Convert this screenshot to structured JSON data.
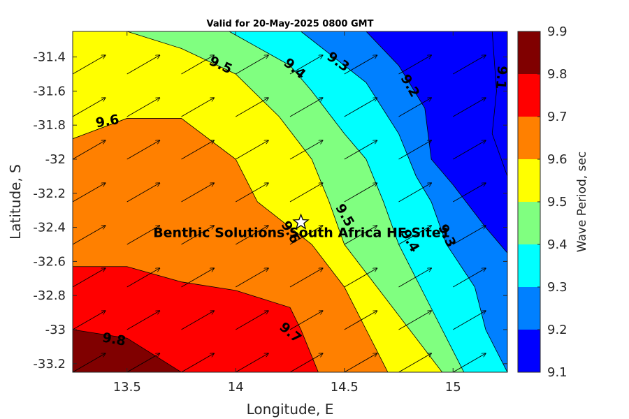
{
  "chart_data": {
    "type": "contour",
    "title": "Valid for 20-May-2025 0800 GMT",
    "xlabel": "Longitude, E",
    "ylabel": "Latitude, S",
    "colorbar_label": "Wave Period, sec",
    "xlim": [
      13.25,
      15.25
    ],
    "ylim": [
      -33.25,
      -31.25
    ],
    "xticks": [
      13.5,
      14,
      14.5,
      15
    ],
    "xtick_labels": [
      "13.5",
      "14",
      "14.5",
      "15"
    ],
    "yticks": [
      -31.4,
      -31.6,
      -31.8,
      -32,
      -32.2,
      -32.4,
      -32.6,
      -32.8,
      -33,
      -33.2
    ],
    "ytick_labels": [
      "-31.4",
      "-31.6",
      "-31.8",
      "-32",
      "-32.2",
      "-32.4",
      "-32.6",
      "-32.8",
      "-33",
      "-33.2"
    ],
    "colorbar": {
      "levels": [
        9.1,
        9.2,
        9.3,
        9.4,
        9.5,
        9.6,
        9.7,
        9.8,
        9.9
      ],
      "tick_labels": [
        "9.1",
        "9.2",
        "9.3",
        "9.4",
        "9.5",
        "9.6",
        "9.7",
        "9.8",
        "9.9"
      ],
      "colors": [
        "#0000ff",
        "#0080ff",
        "#00ffff",
        "#80ff80",
        "#ffff00",
        "#ff8000",
        "#ff0000",
        "#800000"
      ]
    },
    "contour_lines": [
      {
        "level": 9.8,
        "points": [
          [
            13.25,
            -33.0
          ],
          [
            13.5,
            -33.05
          ],
          [
            13.75,
            -33.25
          ]
        ]
      },
      {
        "level": 9.7,
        "points": [
          [
            13.25,
            -32.63
          ],
          [
            13.5,
            -32.63
          ],
          [
            13.75,
            -32.72
          ],
          [
            14.0,
            -32.77
          ],
          [
            14.25,
            -32.87
          ],
          [
            14.3,
            -33.0
          ],
          [
            14.38,
            -33.25
          ]
        ]
      },
      {
        "level": 9.6,
        "points": [
          [
            13.25,
            -31.88
          ],
          [
            13.5,
            -31.76
          ],
          [
            13.75,
            -31.76
          ],
          [
            14.0,
            -32.0
          ],
          [
            14.1,
            -32.25
          ],
          [
            14.35,
            -32.5
          ],
          [
            14.5,
            -32.75
          ],
          [
            14.6,
            -33.0
          ],
          [
            14.7,
            -33.25
          ]
        ]
      },
      {
        "level": 9.5,
        "points": [
          [
            13.5,
            -31.25
          ],
          [
            13.75,
            -31.35
          ],
          [
            14.0,
            -31.5
          ],
          [
            14.2,
            -31.75
          ],
          [
            14.35,
            -32.0
          ],
          [
            14.43,
            -32.25
          ],
          [
            14.5,
            -32.5
          ],
          [
            14.65,
            -32.75
          ],
          [
            14.8,
            -33.0
          ],
          [
            14.95,
            -33.25
          ]
        ]
      },
      {
        "level": 9.4,
        "points": [
          [
            13.97,
            -31.25
          ],
          [
            14.25,
            -31.45
          ],
          [
            14.35,
            -31.6
          ],
          [
            14.5,
            -31.85
          ],
          [
            14.6,
            -32.0
          ],
          [
            14.68,
            -32.25
          ],
          [
            14.75,
            -32.5
          ],
          [
            14.85,
            -32.75
          ],
          [
            14.95,
            -33.0
          ],
          [
            15.05,
            -33.25
          ]
        ]
      },
      {
        "level": 9.3,
        "points": [
          [
            14.3,
            -31.25
          ],
          [
            14.45,
            -31.4
          ],
          [
            14.6,
            -31.55
          ],
          [
            14.75,
            -31.85
          ],
          [
            14.83,
            -32.1
          ],
          [
            14.9,
            -32.25
          ],
          [
            14.97,
            -32.5
          ],
          [
            15.1,
            -32.75
          ],
          [
            15.15,
            -33.0
          ],
          [
            15.25,
            -33.25
          ]
        ]
      },
      {
        "level": 9.2,
        "points": [
          [
            14.6,
            -31.25
          ],
          [
            14.75,
            -31.45
          ],
          [
            14.87,
            -31.7
          ],
          [
            14.9,
            -32.0
          ],
          [
            15.0,
            -32.15
          ],
          [
            15.15,
            -32.4
          ],
          [
            15.25,
            -32.55
          ]
        ]
      },
      {
        "level": 9.1,
        "points": [
          [
            15.18,
            -31.25
          ],
          [
            15.2,
            -31.6
          ],
          [
            15.18,
            -31.85
          ],
          [
            15.25,
            -32.1
          ]
        ]
      }
    ],
    "contour_labels": [
      {
        "text": "9.8",
        "x": 13.44,
        "y": -33.06,
        "angle": 10
      },
      {
        "text": "9.7",
        "x": 14.25,
        "y": -33.02,
        "angle": 40
      },
      {
        "text": "9.6",
        "x": 13.41,
        "y": -31.78,
        "angle": -10
      },
      {
        "text": "9.6",
        "x": 14.25,
        "y": -32.43,
        "angle": 60
      },
      {
        "text": "9.5",
        "x": 13.93,
        "y": -31.45,
        "angle": 25
      },
      {
        "text": "9.5",
        "x": 14.5,
        "y": -32.33,
        "angle": 60
      },
      {
        "text": "9.4",
        "x": 14.27,
        "y": -31.47,
        "angle": 40
      },
      {
        "text": "9.4",
        "x": 14.8,
        "y": -32.48,
        "angle": 60
      },
      {
        "text": "9.3",
        "x": 14.47,
        "y": -31.43,
        "angle": 35
      },
      {
        "text": "9.3",
        "x": 14.97,
        "y": -32.45,
        "angle": 65
      },
      {
        "text": "9.2",
        "x": 14.8,
        "y": -31.57,
        "angle": 60
      },
      {
        "text": "9.1",
        "x": 15.22,
        "y": -31.52,
        "angle": 95
      }
    ],
    "direction_arrows": {
      "x": [
        13.25,
        13.5,
        13.75,
        14.0,
        14.25,
        14.5,
        14.75,
        15.0
      ],
      "y": [
        -31.5,
        -31.75,
        -32.0,
        -32.25,
        -32.5,
        -32.75,
        -33.0,
        -33.25
      ],
      "direction_deg": 30,
      "note_units": "arrow points toward northeast for all grid points"
    },
    "site": {
      "name": "Benthic Solutions South Africa HF Site1",
      "lon": 14.3,
      "lat": -32.37
    }
  }
}
